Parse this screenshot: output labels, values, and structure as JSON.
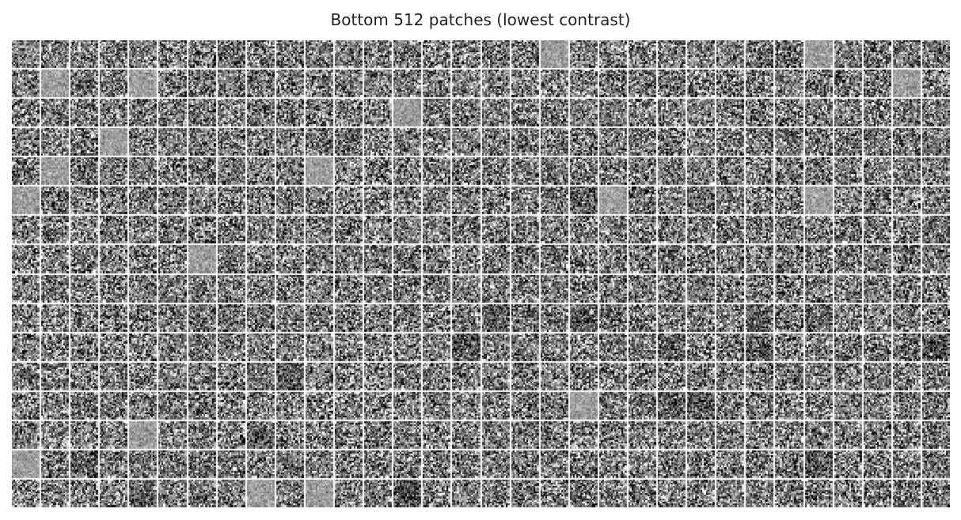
{
  "figure": {
    "title": "Bottom 512 patches (lowest contrast)",
    "patch_count": 512,
    "grid": {
      "rows": 16,
      "columns": 32
    },
    "colormap": "gray",
    "background_color": "#ffffff",
    "low_contrast_patches": [
      {
        "row": 0,
        "col": 18
      },
      {
        "row": 0,
        "col": 27
      },
      {
        "row": 1,
        "col": 1
      },
      {
        "row": 1,
        "col": 4
      },
      {
        "row": 1,
        "col": 30
      },
      {
        "row": 2,
        "col": 13
      },
      {
        "row": 3,
        "col": 3
      },
      {
        "row": 4,
        "col": 1
      },
      {
        "row": 4,
        "col": 10
      },
      {
        "row": 5,
        "col": 0
      },
      {
        "row": 5,
        "col": 20
      },
      {
        "row": 5,
        "col": 27
      },
      {
        "row": 7,
        "col": 6
      },
      {
        "row": 12,
        "col": 19
      },
      {
        "row": 13,
        "col": 4
      },
      {
        "row": 14,
        "col": 0
      },
      {
        "row": 15,
        "col": 8
      },
      {
        "row": 15,
        "col": 10
      }
    ],
    "dark_patches": [
      {
        "row": 5,
        "col": 19
      },
      {
        "row": 9,
        "col": 16
      },
      {
        "row": 9,
        "col": 19
      },
      {
        "row": 9,
        "col": 25
      },
      {
        "row": 9,
        "col": 27
      },
      {
        "row": 10,
        "col": 15
      },
      {
        "row": 10,
        "col": 22
      },
      {
        "row": 10,
        "col": 25
      },
      {
        "row": 10,
        "col": 31
      },
      {
        "row": 11,
        "col": 9
      },
      {
        "row": 12,
        "col": 22
      },
      {
        "row": 12,
        "col": 23
      },
      {
        "row": 13,
        "col": 8
      },
      {
        "row": 14,
        "col": 2
      },
      {
        "row": 14,
        "col": 27
      },
      {
        "row": 15,
        "col": 4
      },
      {
        "row": 15,
        "col": 13
      }
    ]
  }
}
